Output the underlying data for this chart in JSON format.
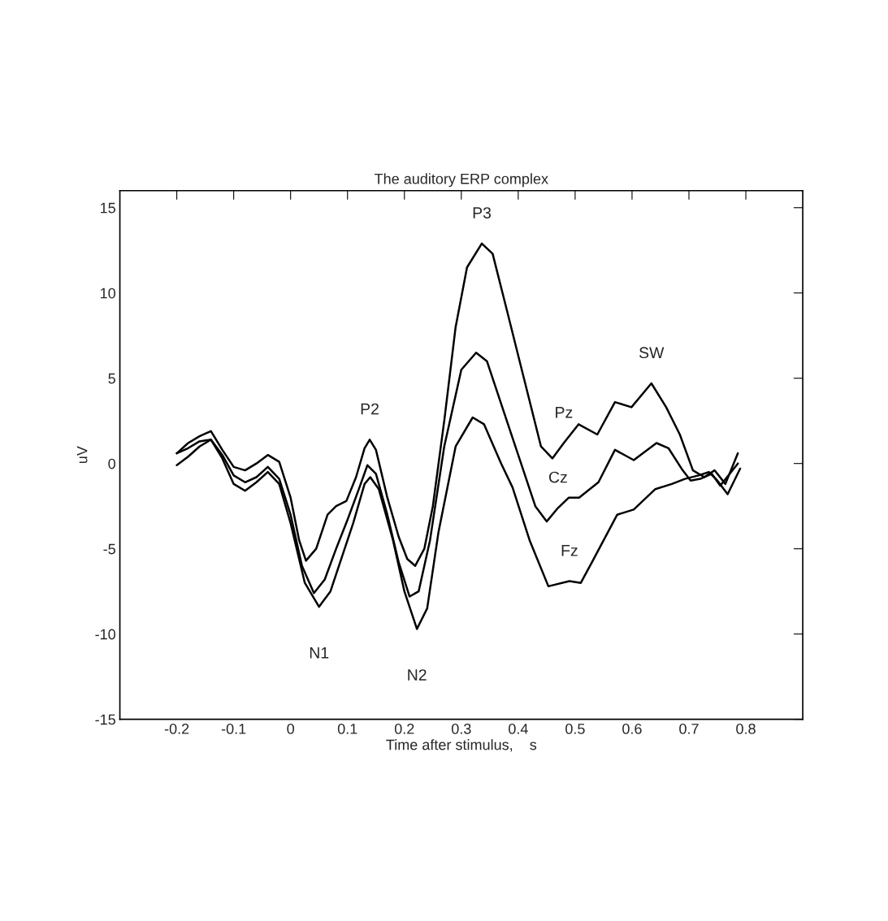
{
  "chart_data": {
    "type": "line",
    "title": "The auditory ERP complex",
    "xlabel": "Time after stimulus,    s",
    "ylabel": "uV",
    "xlim": [
      -0.3,
      0.9
    ],
    "ylim": [
      -15,
      16
    ],
    "xticks": [
      -0.2,
      -0.1,
      0,
      0.1,
      0.2,
      0.3,
      0.4,
      0.5,
      0.6,
      0.7,
      0.8
    ],
    "yticks": [
      -15,
      -10,
      -5,
      0,
      5,
      10,
      15
    ],
    "grid": false,
    "marker": "none",
    "line_style": "solid",
    "series": [
      {
        "color": "#000000",
        "x": [
          -0.2,
          -0.18,
          -0.16,
          -0.14,
          -0.12,
          -0.1,
          -0.08,
          -0.06,
          -0.04,
          -0.02,
          0.0,
          0.015,
          0.027,
          0.045,
          0.065,
          0.08,
          0.098,
          0.115,
          0.13,
          0.139,
          0.15,
          0.17,
          0.19,
          0.205,
          0.219,
          0.235,
          0.25,
          0.27,
          0.29,
          0.31,
          0.336,
          0.355,
          0.38,
          0.41,
          0.44,
          0.46,
          0.48,
          0.506,
          0.539,
          0.57,
          0.599,
          0.634,
          0.66,
          0.684,
          0.707,
          0.727,
          0.745,
          0.764,
          0.786
        ],
        "values": [
          0.6,
          1.2,
          1.6,
          1.9,
          0.8,
          -0.2,
          -0.4,
          0.0,
          0.5,
          0.1,
          -2.0,
          -4.5,
          -5.7,
          -5.0,
          -3.0,
          -2.5,
          -2.2,
          -0.8,
          0.9,
          1.4,
          0.8,
          -2.0,
          -4.3,
          -5.6,
          -6.0,
          -5.0,
          -2.5,
          2.5,
          8.0,
          11.5,
          12.9,
          12.3,
          9.0,
          5.0,
          1.0,
          0.3,
          1.2,
          2.3,
          1.7,
          3.6,
          3.3,
          4.7,
          3.3,
          1.7,
          -0.4,
          -0.8,
          -0.4,
          -1.2,
          0.6
        ]
      },
      {
        "color": "#000000",
        "x": [
          -0.2,
          -0.18,
          -0.16,
          -0.14,
          -0.12,
          -0.1,
          -0.08,
          -0.06,
          -0.04,
          -0.02,
          0.0,
          0.02,
          0.041,
          0.06,
          0.08,
          0.1,
          0.12,
          0.135,
          0.15,
          0.17,
          0.19,
          0.209,
          0.225,
          0.245,
          0.27,
          0.3,
          0.326,
          0.345,
          0.37,
          0.4,
          0.43,
          0.45,
          0.47,
          0.489,
          0.507,
          0.541,
          0.57,
          0.603,
          0.643,
          0.664,
          0.689,
          0.703,
          0.72,
          0.74,
          0.755,
          0.786
        ],
        "values": [
          0.6,
          0.9,
          1.3,
          1.4,
          0.5,
          -0.7,
          -1.1,
          -0.8,
          -0.2,
          -0.9,
          -3.0,
          -6.0,
          -7.6,
          -6.8,
          -5.0,
          -3.3,
          -1.5,
          -0.1,
          -0.6,
          -3.0,
          -5.8,
          -7.8,
          -7.5,
          -4.5,
          1.0,
          5.5,
          6.5,
          6.0,
          3.5,
          0.5,
          -2.5,
          -3.4,
          -2.6,
          -2.0,
          -2.0,
          -1.1,
          0.8,
          0.2,
          1.2,
          0.9,
          -0.4,
          -1.0,
          -0.9,
          -0.6,
          -1.3,
          0.0
        ]
      },
      {
        "color": "#000000",
        "x": [
          -0.2,
          -0.18,
          -0.16,
          -0.14,
          -0.12,
          -0.1,
          -0.08,
          -0.06,
          -0.04,
          -0.02,
          0.0,
          0.025,
          0.05,
          0.07,
          0.09,
          0.11,
          0.13,
          0.14,
          0.155,
          0.18,
          0.2,
          0.222,
          0.24,
          0.26,
          0.29,
          0.32,
          0.34,
          0.37,
          0.39,
          0.42,
          0.453,
          0.49,
          0.51,
          0.531,
          0.574,
          0.603,
          0.641,
          0.67,
          0.693,
          0.717,
          0.735,
          0.75,
          0.768,
          0.79
        ],
        "values": [
          -0.1,
          0.4,
          1.0,
          1.4,
          0.3,
          -1.2,
          -1.6,
          -1.1,
          -0.5,
          -1.2,
          -3.5,
          -7.0,
          -8.4,
          -7.5,
          -5.5,
          -3.5,
          -1.2,
          -0.8,
          -1.5,
          -4.5,
          -7.5,
          -9.7,
          -8.5,
          -4.0,
          1.0,
          2.7,
          2.3,
          0.0,
          -1.4,
          -4.5,
          -7.2,
          -6.9,
          -7.0,
          -5.7,
          -3.0,
          -2.7,
          -1.5,
          -1.2,
          -0.9,
          -0.7,
          -0.5,
          -1.0,
          -1.8,
          -0.3
        ]
      }
    ],
    "annotations": [
      {
        "text": "P3",
        "x": 0.336,
        "y": 12.9
      },
      {
        "text": "P2",
        "x": 0.139,
        "y": 1.4
      },
      {
        "text": "N1",
        "x": 0.05,
        "y": -8.4
      },
      {
        "text": "N2",
        "x": 0.222,
        "y": -9.7
      },
      {
        "text": "SW",
        "x": 0.634,
        "y": 4.7
      },
      {
        "text": "Pz",
        "x": 0.48,
        "y": 1.2
      },
      {
        "text": "Cz",
        "x": 0.47,
        "y": -2.6
      },
      {
        "text": "Fz",
        "x": 0.49,
        "y": -6.9
      }
    ]
  }
}
